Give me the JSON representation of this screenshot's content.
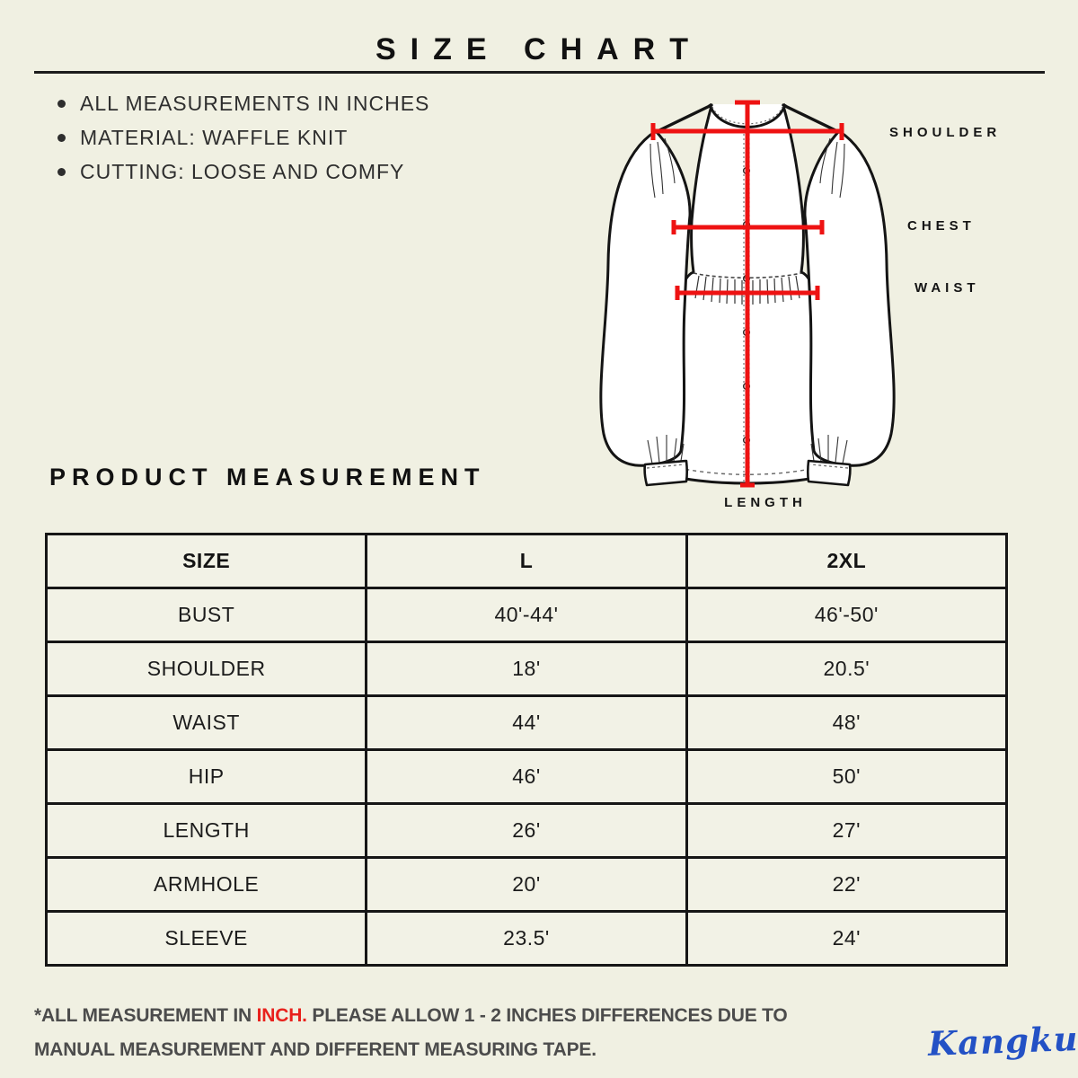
{
  "page": {
    "background": "#F0F0E2",
    "accent_red": "#EE1212",
    "ink": "#141414",
    "note_gray": "#4C4C4C",
    "brand_blue": "#2351C5"
  },
  "header": {
    "title": "SIZE CHART"
  },
  "notes": {
    "items": [
      "ALL MEASUREMENTS IN INCHES",
      "MATERIAL: WAFFLE KNIT",
      "CUTTING: LOOSE AND COMFY"
    ]
  },
  "diagram": {
    "labels": {
      "shoulder": "SHOULDER",
      "chest": "CHEST",
      "waist": "WAIST",
      "length": "LENGTH"
    }
  },
  "section": {
    "title": "PRODUCT MEASUREMENT"
  },
  "chart_data": {
    "type": "table",
    "title": "PRODUCT MEASUREMENT",
    "columns": [
      "SIZE",
      "L",
      "2XL"
    ],
    "rows": [
      [
        "BUST",
        "40'-44'",
        "46'-50'"
      ],
      [
        "SHOULDER",
        "18'",
        "20.5'"
      ],
      [
        "WAIST",
        "44'",
        "48'"
      ],
      [
        "HIP",
        "46'",
        "50'"
      ],
      [
        "LENGTH",
        "26'",
        "27'"
      ],
      [
        "ARMHOLE",
        "20'",
        "22'"
      ],
      [
        "SLEEVE",
        "23.5'",
        "24'"
      ]
    ]
  },
  "footer": {
    "note_prefix": "*ALL MEASUREMENT IN ",
    "note_highlight": "INCH.",
    "note_suffix": " PLEASE ALLOW 1 - 2 INCHES DIFFERENCES DUE TO MANUAL MEASUREMENT AND DIFFERENT MEASURING TAPE.",
    "brand": "Kangkung"
  }
}
